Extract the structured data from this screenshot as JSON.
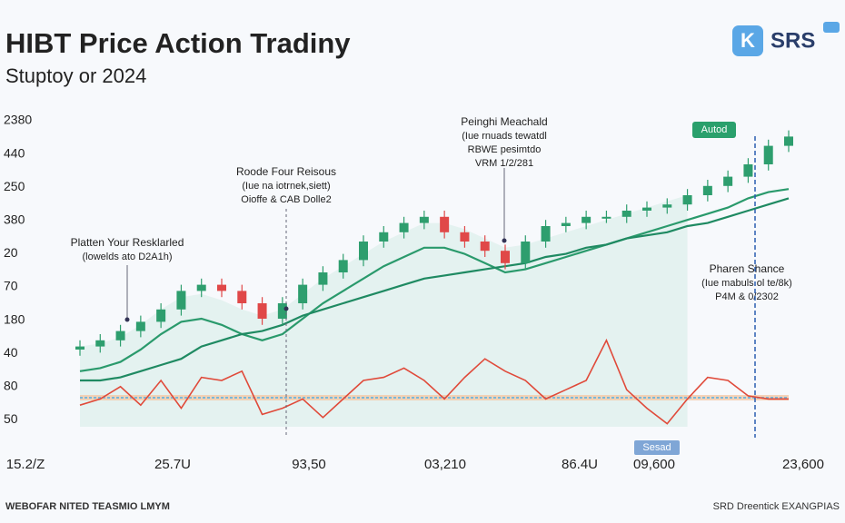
{
  "header": {
    "title": "HIBT Price Action Tradiny",
    "subtitle": "Stuptoy or 2024"
  },
  "logo": {
    "icon": "K",
    "text": "SRS"
  },
  "chart_data": {
    "type": "candlestick",
    "ylim": [
      0,
      100
    ],
    "y_axis_labels": [
      "2380",
      "440",
      "250",
      "380",
      "20",
      "70",
      "180",
      "40",
      "80",
      "50"
    ],
    "x_axis_labels": [
      "15.2/Z",
      "25.7U",
      "93,50",
      "03,210",
      "86.4U",
      "09,600",
      "23,600"
    ],
    "up_color": "#2e9e6e",
    "down_color": "#e04848",
    "open": [
      25,
      26,
      28,
      31,
      34,
      38,
      44,
      46,
      44,
      40,
      35,
      40,
      46,
      50,
      54,
      60,
      63,
      66,
      68,
      63,
      60,
      57,
      53,
      60,
      65,
      66,
      68,
      68,
      70,
      71,
      72,
      75,
      78,
      81,
      85,
      91
    ],
    "high": [
      28,
      30,
      33,
      36,
      40,
      46,
      48,
      48,
      46,
      42,
      42,
      48,
      52,
      56,
      62,
      65,
      68,
      70,
      70,
      65,
      62,
      59,
      62,
      67,
      68,
      70,
      70,
      72,
      73,
      74,
      77,
      80,
      83,
      87,
      93,
      96
    ],
    "low": [
      23,
      24,
      26,
      29,
      32,
      36,
      42,
      42,
      38,
      33,
      33,
      38,
      44,
      48,
      52,
      58,
      61,
      64,
      61,
      58,
      55,
      51,
      51,
      58,
      63,
      64,
      66,
      66,
      68,
      69,
      70,
      73,
      76,
      79,
      83,
      89
    ],
    "close": [
      26,
      28,
      31,
      34,
      38,
      44,
      46,
      44,
      40,
      35,
      40,
      46,
      50,
      54,
      60,
      63,
      66,
      68,
      63,
      60,
      57,
      53,
      60,
      65,
      66,
      68,
      68,
      70,
      71,
      72,
      75,
      78,
      81,
      85,
      91,
      94
    ],
    "series": [
      {
        "color": "#2a9a6c",
        "values": [
          18,
          19,
          21,
          25,
          30,
          34,
          35,
          33,
          30,
          28,
          30,
          35,
          40,
          44,
          48,
          52,
          55,
          58,
          58,
          56,
          53,
          50,
          51,
          53,
          55,
          57,
          59,
          61,
          63,
          65,
          67,
          69,
          71,
          74,
          76,
          77
        ]
      },
      {
        "color": "#1f8a62",
        "values": [
          15,
          15,
          16,
          18,
          20,
          22,
          26,
          28,
          30,
          31,
          33,
          36,
          38,
          40,
          42,
          44,
          46,
          48,
          49,
          50,
          51,
          52,
          53,
          55,
          56,
          58,
          59,
          61,
          62,
          63,
          65,
          66,
          68,
          70,
          72,
          74
        ]
      },
      {
        "color": "#e04a3a",
        "values": [
          7,
          9,
          13,
          7,
          15,
          6,
          16,
          15,
          18,
          4,
          6,
          9,
          3,
          9,
          15,
          16,
          19,
          15,
          9,
          16,
          22,
          18,
          15,
          9,
          12,
          15,
          28,
          12,
          6,
          1,
          9,
          16,
          15,
          10,
          9,
          9
        ]
      }
    ]
  },
  "annotations": [
    {
      "lines": [
        "Platten Your Resklarled",
        "(lowelds ato D2A1h)"
      ]
    },
    {
      "lines": [
        "Roode Four Reisous",
        "(Iue na iotrnek,siett)",
        "Oioffe & CAB Dolle2"
      ]
    },
    {
      "lines": [
        "Peinghi Meachald",
        "(Iue rnuads tewatdl",
        "RBWE pesimtdo",
        "VRM 1/2/281"
      ]
    },
    {
      "lines": [
        "Pharen Shance",
        "(Iue mabuls ol te/8k)",
        "P4M & 0/2302"
      ]
    }
  ],
  "badges": {
    "top": "Autod",
    "bottom": "Sesad"
  },
  "footer": {
    "left": "WEBOFAR NITED TEASMIO LMYM",
    "right": "SRD Dreentick EXANGPIAS"
  }
}
